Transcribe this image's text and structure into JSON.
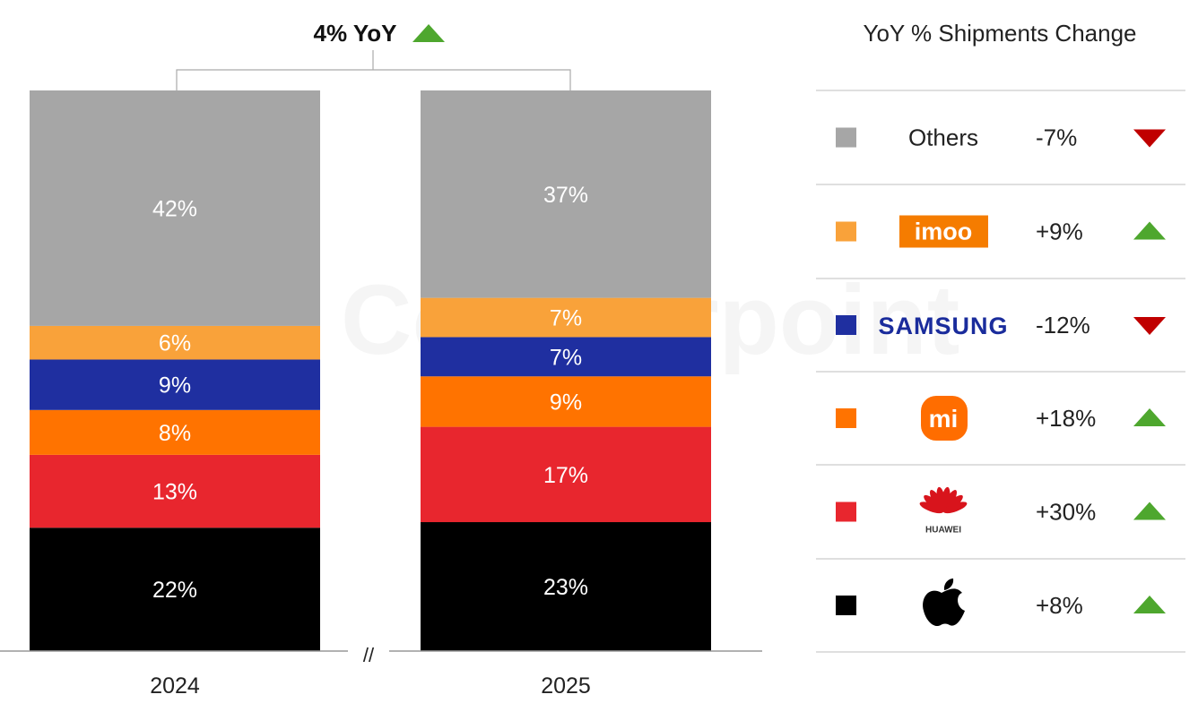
{
  "chart_data": {
    "type": "stacked-bar",
    "title": "4% YoY",
    "title_trend": "up",
    "categories": [
      "2024",
      "2025"
    ],
    "series": [
      {
        "name": "Apple",
        "color": "#000000",
        "values": [
          22,
          23
        ],
        "yoy": "+8%",
        "trend": "up"
      },
      {
        "name": "Huawei",
        "color": "#e8262e",
        "values": [
          13,
          17
        ],
        "yoy": "+30%",
        "trend": "up",
        "logo_text": "HUAWEI"
      },
      {
        "name": "Xiaomi",
        "color": "#ff7300",
        "values": [
          8,
          9
        ],
        "yoy": "+18%",
        "trend": "up",
        "logo_text": "mi"
      },
      {
        "name": "Samsung",
        "color": "#1f2fa0",
        "values": [
          9,
          7
        ],
        "yoy": "-12%",
        "trend": "down",
        "logo_text": "SAMSUNG"
      },
      {
        "name": "imoo",
        "color": "#f9a23a",
        "values": [
          6,
          7
        ],
        "yoy": "+9%",
        "trend": "up",
        "logo_text": "imoo"
      },
      {
        "name": "Others",
        "color": "#a6a6a6",
        "values": [
          42,
          37
        ],
        "yoy": "-7%",
        "trend": "down",
        "label": "Others"
      }
    ],
    "unit": "%",
    "ylim": [
      0,
      100
    ],
    "legend_title": "YoY % Shipments Change",
    "legend_position": "right",
    "axis_break": "//",
    "grid": false,
    "watermark": "Counterpoint"
  },
  "colors": {
    "up": "#4ea72e",
    "down": "#c00000"
  }
}
